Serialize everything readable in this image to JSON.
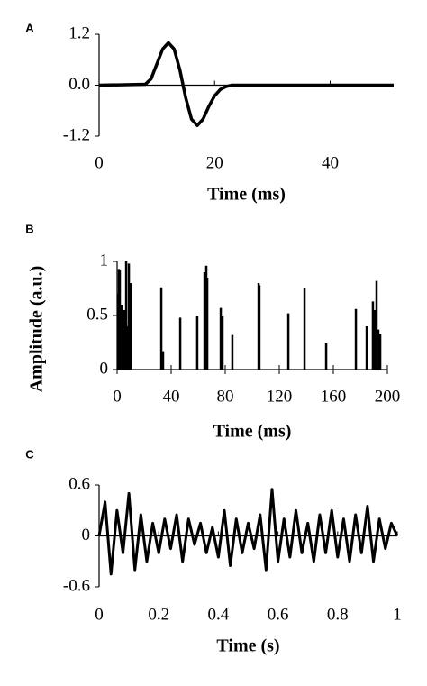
{
  "chart_data": [
    {
      "type": "line",
      "panel_label": "A",
      "xlabel": "Time (ms)",
      "x": [
        0,
        8,
        9,
        10,
        11,
        12,
        13,
        14,
        15,
        16,
        17,
        18,
        19,
        20,
        21,
        22,
        23,
        51
      ],
      "values": [
        0,
        0.02,
        0.15,
        0.5,
        0.85,
        1.0,
        0.85,
        0.35,
        -0.3,
        -0.8,
        -0.95,
        -0.8,
        -0.5,
        -0.25,
        -0.1,
        -0.03,
        0,
        0
      ],
      "color": "#000000",
      "xlim": [
        0,
        51
      ],
      "ylim": [
        -1.2,
        1.2
      ],
      "xticks": [
        0,
        20,
        40
      ],
      "yticks": [
        -1.2,
        {
          "value": 0,
          "label": "0.0"
        },
        1.2
      ]
    },
    {
      "type": "stem",
      "panel_label": "B",
      "xlabel": "Time (ms)",
      "ylabel": "Amplitude (a.u.)",
      "x": [
        0.7,
        1.3,
        2,
        3.3,
        4,
        5.3,
        6.7,
        7.3,
        8.7,
        10,
        32.7,
        34,
        46.7,
        59.3,
        64.7,
        66,
        66.7,
        76.7,
        78,
        85.3,
        104.7,
        105.3,
        126.7,
        138.7,
        154.7,
        176.7,
        184.7,
        189.3,
        190.7,
        192,
        193.3,
        194.7
      ],
      "values": [
        0.7,
        0.93,
        0.92,
        0.6,
        0.47,
        0.55,
        1,
        0.4,
        0.98,
        0.8,
        0.76,
        0.17,
        0.48,
        0.5,
        0.9,
        0.96,
        0.85,
        0.57,
        0.5,
        0.32,
        0.8,
        0.78,
        0.52,
        0.75,
        0.25,
        0.56,
        0.4,
        0.63,
        0.55,
        0.82,
        0.37,
        0.33
      ],
      "color": "#000000",
      "xlim": [
        0,
        200
      ],
      "ylim": [
        0,
        1
      ],
      "xticks": [
        0,
        40,
        80,
        120,
        160,
        200
      ],
      "yticks": [
        0,
        0.5,
        1
      ]
    },
    {
      "type": "line",
      "panel_label": "C",
      "xlabel": "Time (s)",
      "x": [
        0,
        0.02,
        0.04,
        0.06,
        0.08,
        0.1,
        0.12,
        0.14,
        0.16,
        0.18,
        0.2,
        0.22,
        0.24,
        0.26,
        0.28,
        0.3,
        0.32,
        0.34,
        0.36,
        0.38,
        0.4,
        0.42,
        0.44,
        0.46,
        0.48,
        0.5,
        0.52,
        0.54,
        0.56,
        0.58,
        0.6,
        0.62,
        0.64,
        0.66,
        0.68,
        0.7,
        0.72,
        0.74,
        0.76,
        0.78,
        0.8,
        0.82,
        0.84,
        0.86,
        0.88,
        0.9,
        0.92,
        0.94,
        0.96,
        0.98,
        1
      ],
      "values": [
        0,
        0.4,
        -0.45,
        0.3,
        -0.2,
        0.5,
        -0.4,
        0.25,
        -0.3,
        0.15,
        -0.2,
        0.2,
        -0.15,
        0.25,
        -0.3,
        0.2,
        -0.1,
        0.15,
        -0.2,
        0.1,
        -0.25,
        0.3,
        -0.35,
        0.2,
        -0.2,
        0.15,
        -0.15,
        0.25,
        -0.4,
        0.55,
        -0.3,
        0.2,
        -0.25,
        0.3,
        -0.2,
        0.15,
        -0.3,
        0.25,
        -0.2,
        0.3,
        -0.25,
        0.2,
        -0.3,
        0.25,
        -0.2,
        0.35,
        -0.3,
        0.2,
        -0.15,
        0.15,
        0
      ],
      "color": "#000000",
      "xlim": [
        0,
        1
      ],
      "ylim": [
        -0.6,
        0.6
      ],
      "xticks": [
        0,
        0.2,
        0.4,
        0.6,
        0.8,
        1
      ],
      "yticks": [
        -0.6,
        0,
        0.6
      ]
    }
  ]
}
